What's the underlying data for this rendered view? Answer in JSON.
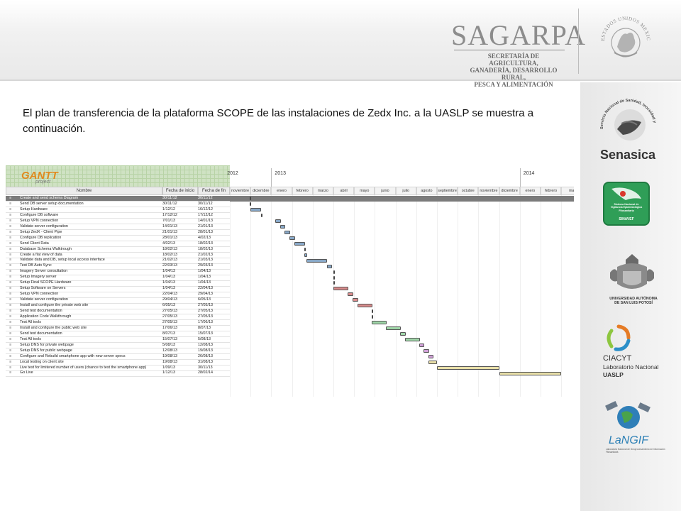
{
  "header": {
    "agency_name": "SAGARPA",
    "agency_subtitle": [
      "SECRETARÍA DE AGRICULTURA,",
      "GANADERÍA, DESARROLLO RURAL,",
      "PESCA Y ALIMENTACIÓN"
    ],
    "seal_text": "ESTADOS UNIDOS MEXICANOS"
  },
  "sidebar_logos": [
    {
      "name": "senasica",
      "label": "Senasica",
      "ring_text": "Servicio Nacional de Sanidad, Inocuidad y Calidad Agroalimentaria"
    },
    {
      "name": "sinavef",
      "label": "SINAVEF",
      "lines": [
        "Sistema Nacional de",
        "Vigilancia Epidemiológica",
        "Fitosanitaria"
      ]
    },
    {
      "name": "uaslp",
      "lines": [
        "UNIVERSIDAD AUTÓNOMA",
        "DE SAN LUIS POTOSÍ"
      ]
    },
    {
      "name": "ciacyt",
      "lines": [
        "CIACYT",
        "Laboratorio Nacional",
        "UASLP"
      ]
    },
    {
      "name": "langif",
      "label": "LaNGIF",
      "sub": "Laboratorio Nacional de Geoprocesamiento de Información Fitosanitaria"
    }
  ],
  "intro_text": "El plan de transferencia de la plataforma SCOPE de las instalaciones de Zedx Inc. a la UASLP se muestra a continuación.",
  "gantt": {
    "logo": "GANTT",
    "logo_sub": "project",
    "columns": {
      "name": "Nombre",
      "start": "Fecha de inicio",
      "end": "Fecha de fin"
    },
    "years": [
      "2012",
      "2013",
      "2014"
    ],
    "months": [
      "noviembre",
      "diciembre",
      "enero",
      "febrero",
      "marzo",
      "abril",
      "mayo",
      "junio",
      "julio",
      "agosto",
      "septiembre",
      "octubre",
      "noviembre",
      "diciembre",
      "enero",
      "febrero",
      "ma"
    ],
    "tasks": [
      {
        "name": "Create and send schema Diagram",
        "start": "30/11/12",
        "end": "30/11/12",
        "color": "#555555"
      },
      {
        "name": "Send DB server setup documentation",
        "start": "30/11/12",
        "end": "30/11/12",
        "color": "#555555"
      },
      {
        "name": "Setup Hardware",
        "start": "1/12/12",
        "end": "16/12/12",
        "color": "#88a8c8"
      },
      {
        "name": "Configure DB software",
        "start": "17/12/12",
        "end": "17/12/12",
        "color": "#555555"
      },
      {
        "name": "Setup VPN connection",
        "start": "7/01/13",
        "end": "14/01/13",
        "color": "#88a8c8"
      },
      {
        "name": "Validate server configuration",
        "start": "14/01/13",
        "end": "21/01/13",
        "color": "#88a8c8"
      },
      {
        "name": "Setup ZedX - Client Pipe",
        "start": "21/01/13",
        "end": "28/01/13",
        "color": "#88a8c8"
      },
      {
        "name": "Configure DB replication",
        "start": "28/01/13",
        "end": "4/02/13",
        "color": "#88a8c8"
      },
      {
        "name": "Send Client Data",
        "start": "4/02/13",
        "end": "18/02/13",
        "color": "#88a8c8"
      },
      {
        "name": "Database Schema Walktrough",
        "start": "18/02/13",
        "end": "18/02/13",
        "color": "#555555"
      },
      {
        "name": "Create a flat view of data",
        "start": "18/02/13",
        "end": "21/02/13",
        "color": "#88a8c8"
      },
      {
        "name": "Validate data and DB, setup local access interface",
        "start": "21/02/13",
        "end": "21/03/13",
        "color": "#88a8c8"
      },
      {
        "name": "Test DB Auto Sync",
        "start": "22/03/13",
        "end": "29/03/13",
        "color": "#88a8c8"
      },
      {
        "name": "Imagery Server consultation",
        "start": "1/04/13",
        "end": "1/04/13",
        "color": "#555555"
      },
      {
        "name": "Setup Imagery server",
        "start": "1/04/13",
        "end": "1/04/13",
        "color": "#555555"
      },
      {
        "name": "Setup Final SCOPE Hardware",
        "start": "1/04/13",
        "end": "1/04/13",
        "color": "#555555"
      },
      {
        "name": "Setup Software on Servers",
        "start": "1/04/13",
        "end": "22/04/13",
        "color": "#d98c8c"
      },
      {
        "name": "Setup VPN connection",
        "start": "22/04/13",
        "end": "29/04/13",
        "color": "#d98c8c"
      },
      {
        "name": "Validate server configuration",
        "start": "29/04/13",
        "end": "6/05/13",
        "color": "#d98c8c"
      },
      {
        "name": "Install and configure the private web site",
        "start": "6/05/13",
        "end": "27/05/13",
        "color": "#d98c8c"
      },
      {
        "name": "Send test documentation",
        "start": "27/05/13",
        "end": "27/05/13",
        "color": "#555555"
      },
      {
        "name": "Application Code Walkthrough",
        "start": "27/05/13",
        "end": "27/05/13",
        "color": "#555555"
      },
      {
        "name": "Test All tools",
        "start": "27/05/13",
        "end": "17/06/13",
        "color": "#9fd6a8"
      },
      {
        "name": "Install and configure the public web site",
        "start": "17/06/13",
        "end": "8/07/13",
        "color": "#9fd6a8"
      },
      {
        "name": "Send test documentation",
        "start": "8/07/13",
        "end": "15/07/13",
        "color": "#9fd6a8"
      },
      {
        "name": "Test All tools",
        "start": "15/07/13",
        "end": "5/08/13",
        "color": "#9fd6a8"
      },
      {
        "name": "Setup DNS for private webpage",
        "start": "5/08/13",
        "end": "12/08/13",
        "color": "#d1a0d8"
      },
      {
        "name": "Setup DNS for public webpage",
        "start": "12/08/13",
        "end": "19/08/13",
        "color": "#d1a0d8"
      },
      {
        "name": "Configure and Rebuild smartphone app with new server specs",
        "start": "19/08/13",
        "end": "26/08/13",
        "color": "#d1a0d8"
      },
      {
        "name": "Local testing  on client site",
        "start": "19/08/13",
        "end": "31/08/13",
        "color": "#e8dfa8"
      },
      {
        "name": "Live test for limitered number of users  (chance to test the smartphone app)",
        "start": "1/09/13",
        "end": "30/11/13",
        "color": "#e8dfa8"
      },
      {
        "name": "Go Live",
        "start": "1/12/13",
        "end": "28/02/14",
        "color": "#e8dfa8"
      }
    ]
  }
}
